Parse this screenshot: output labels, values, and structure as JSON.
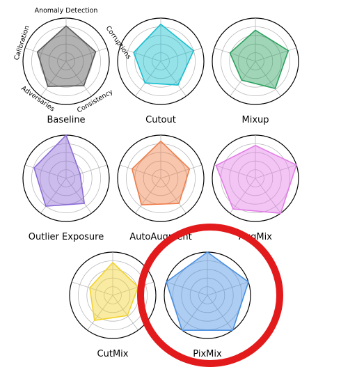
{
  "axes": [
    "Anomaly Detection",
    "Corruptions",
    "Consistency",
    "Adversaries",
    "Calibration"
  ],
  "highlight": {
    "target": "PixMix",
    "color": "#e31a1c"
  },
  "chart_data": {
    "type": "radar",
    "title": "",
    "rings": 5,
    "range": [
      0,
      1
    ],
    "grid": true,
    "series": [
      {
        "name": "Baseline",
        "color": "#555555",
        "values": [
          0.82,
          0.72,
          0.7,
          0.72,
          0.7
        ]
      },
      {
        "name": "Cutout",
        "color": "#17becf",
        "values": [
          0.86,
          0.8,
          0.68,
          0.62,
          0.66
        ]
      },
      {
        "name": "Mixup",
        "color": "#2ca25f",
        "values": [
          0.72,
          0.8,
          0.78,
          0.54,
          0.62
        ]
      },
      {
        "name": "Outlier Exposure",
        "color": "#8c6bd6",
        "values": [
          1.0,
          0.34,
          0.72,
          0.8,
          0.78
        ]
      },
      {
        "name": "AutoAugment",
        "color": "#ef7e4a",
        "values": [
          0.86,
          0.7,
          0.72,
          0.76,
          0.7
        ]
      },
      {
        "name": "AugMix",
        "color": "#e27ee6",
        "values": [
          0.76,
          1.0,
          1.0,
          0.88,
          0.96
        ]
      },
      {
        "name": "CutMix",
        "color": "#f2d22e",
        "values": [
          0.76,
          0.62,
          0.58,
          0.72,
          0.56
        ]
      },
      {
        "name": "PixMix",
        "color": "#4a90e2",
        "values": [
          1.0,
          1.0,
          1.0,
          1.0,
          1.0
        ]
      }
    ]
  }
}
